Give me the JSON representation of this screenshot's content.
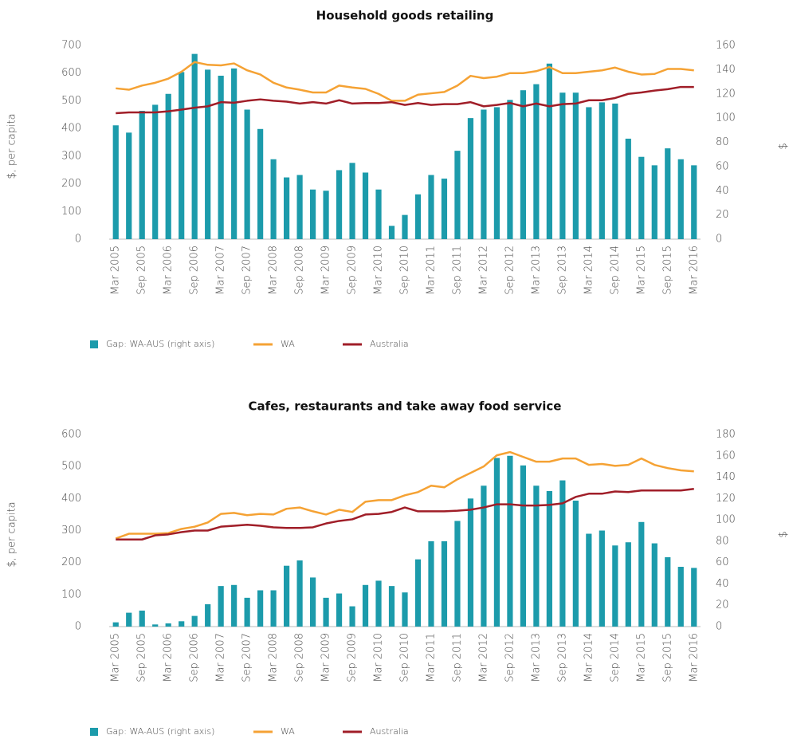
{
  "chart_data": [
    {
      "type": "bar",
      "title": "Household goods retailing",
      "ylabel": "$, per capita",
      "y2label": "$",
      "categories": [
        "Mar 2005",
        null,
        "Sep 2005",
        null,
        "Mar 2006",
        null,
        "Sep 2006",
        null,
        "Mar 2007",
        null,
        "Sep 2007",
        null,
        "Mar 2008",
        null,
        "Sep 2008",
        null,
        "Mar 2009",
        null,
        "Sep 2009",
        null,
        "Mar 2010",
        null,
        "Sep 2010",
        null,
        "Mar 2011",
        null,
        "Sep 2011",
        null,
        "Mar 2012",
        null,
        "Sep 2012",
        null,
        "Mar 2013",
        null,
        "Sep 2013",
        null,
        "Mar 2014",
        null,
        "Sep 2014",
        null,
        "Mar 2015",
        null,
        "Sep 2015",
        null,
        "Mar 2016"
      ],
      "ylim": [
        0,
        700
      ],
      "yticks": [
        0,
        100,
        200,
        300,
        400,
        500,
        600,
        700
      ],
      "y2lim": [
        0,
        160
      ],
      "y2ticks": [
        0,
        20,
        40,
        60,
        80,
        100,
        120,
        140,
        160
      ],
      "series": [
        {
          "name": "Gap: WA-AUS (right axis)",
          "type": "bar",
          "axis": "y2",
          "color": "#1c9bab",
          "values": [
            94,
            88,
            106,
            111,
            120,
            138,
            153,
            140,
            135,
            141,
            107,
            91,
            66,
            51,
            53,
            41,
            40,
            57,
            63,
            55,
            41,
            11,
            20,
            37,
            53,
            50,
            73,
            100,
            107,
            109,
            115,
            123,
            128,
            145,
            121,
            121,
            109,
            113,
            112,
            83,
            68,
            61,
            75,
            66,
            61
          ]
        },
        {
          "name": "WA",
          "type": "line",
          "color": "#f5a234",
          "values": [
            545,
            540,
            555,
            565,
            580,
            605,
            640,
            630,
            628,
            635,
            610,
            595,
            565,
            548,
            540,
            530,
            530,
            555,
            548,
            543,
            525,
            500,
            500,
            522,
            527,
            532,
            555,
            590,
            582,
            587,
            600,
            600,
            607,
            622,
            600,
            600,
            605,
            610,
            620,
            605,
            595,
            597,
            615,
            615,
            610
          ]
        },
        {
          "name": "Australia",
          "type": "line",
          "color": "#a01e28",
          "values": [
            455,
            458,
            458,
            458,
            462,
            468,
            475,
            480,
            495,
            493,
            500,
            505,
            500,
            497,
            490,
            495,
            490,
            502,
            490,
            492,
            492,
            495,
            485,
            492,
            485,
            488,
            488,
            495,
            480,
            485,
            492,
            480,
            490,
            480,
            488,
            490,
            502,
            502,
            510,
            525,
            530,
            537,
            542,
            550,
            550
          ]
        }
      ]
    },
    {
      "type": "bar",
      "title": "Cafes, restaurants and take away food service",
      "ylabel": "$, per capita",
      "y2label": "$",
      "categories": [
        "Mar 2005",
        null,
        "Sep 2005",
        null,
        "Mar 2006",
        null,
        "Sep 2006",
        null,
        "Mar 2007",
        null,
        "Sep 2007",
        null,
        "Mar 2008",
        null,
        "Sep 2008",
        null,
        "Mar 2009",
        null,
        "Sep 2009",
        null,
        "Mar 2010",
        null,
        "Sep 2010",
        null,
        "Mar 2011",
        null,
        "Sep 2011",
        null,
        "Mar 2012",
        null,
        "Sep 2012",
        null,
        "Mar 2013",
        null,
        "Sep 2013",
        null,
        "Mar 2014",
        null,
        "Sep 2014",
        null,
        "Mar 2015",
        null,
        "Sep 2015",
        null,
        "Mar 2016"
      ],
      "ylim": [
        0,
        600
      ],
      "yticks": [
        0,
        100,
        200,
        300,
        400,
        500,
        600
      ],
      "y2lim": [
        0,
        180
      ],
      "y2ticks": [
        0,
        20,
        40,
        60,
        80,
        100,
        120,
        140,
        160,
        180
      ],
      "series": [
        {
          "name": "Gap: WA-AUS (right axis)",
          "type": "bar",
          "axis": "y2",
          "color": "#1c9bab",
          "values": [
            4,
            13,
            15,
            2,
            3,
            5,
            10,
            21,
            38,
            39,
            27,
            34,
            34,
            57,
            62,
            46,
            27,
            31,
            19,
            39,
            43,
            38,
            32,
            63,
            80,
            80,
            99,
            120,
            132,
            158,
            160,
            151,
            132,
            127,
            137,
            118,
            87,
            90,
            76,
            79,
            98,
            78,
            65,
            56,
            55
          ]
        },
        {
          "name": "WA",
          "type": "line",
          "color": "#f5a234",
          "values": [
            275,
            290,
            290,
            290,
            292,
            305,
            312,
            325,
            352,
            355,
            348,
            352,
            350,
            368,
            372,
            360,
            350,
            365,
            358,
            390,
            395,
            395,
            410,
            420,
            440,
            435,
            460,
            480,
            500,
            535,
            545,
            530,
            515,
            515,
            525,
            525,
            505,
            508,
            502,
            505,
            525,
            505,
            495,
            488,
            485
          ]
        },
        {
          "name": "Australia",
          "type": "line",
          "color": "#a01e28",
          "values": [
            272,
            272,
            272,
            285,
            288,
            295,
            300,
            300,
            312,
            315,
            318,
            315,
            310,
            308,
            308,
            310,
            322,
            330,
            335,
            350,
            352,
            358,
            372,
            360,
            360,
            360,
            362,
            365,
            372,
            382,
            382,
            378,
            378,
            380,
            385,
            405,
            415,
            415,
            422,
            420,
            425,
            425,
            425,
            425,
            430
          ]
        }
      ]
    }
  ]
}
